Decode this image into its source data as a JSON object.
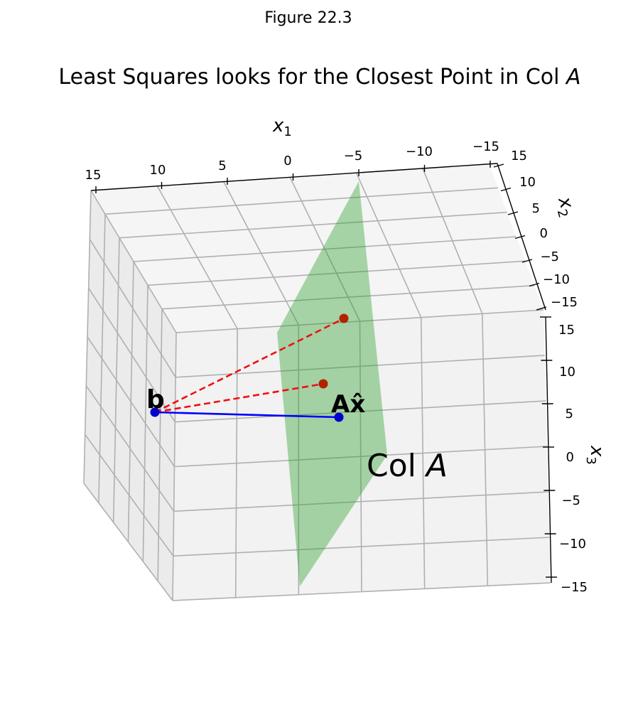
{
  "figure_label": "Figure 22.3",
  "chart_data": {
    "type": "scatter",
    "subtype": "3d",
    "title": "Least Squares looks for the Closest Point in Col A",
    "title_plain": "Least Squares looks for the Closest Point in Col ",
    "title_italic": "A",
    "axes": {
      "x1": {
        "label_base": "x",
        "label_sub": "1",
        "ticks": [
          "15",
          "10",
          "5",
          "0",
          "−5",
          "−10",
          "−15"
        ],
        "lim": [
          -15,
          15
        ]
      },
      "x2": {
        "label_base": "x",
        "label_sub": "2",
        "ticks": [
          "15",
          "10",
          "5",
          "0",
          "−5",
          "−10",
          "−15"
        ],
        "lim": [
          -15,
          15
        ]
      },
      "x3": {
        "label_base": "x",
        "label_sub": "3",
        "ticks": [
          "15",
          "10",
          "5",
          "0",
          "−5",
          "−10",
          "−15"
        ],
        "lim": [
          -15,
          15
        ]
      }
    },
    "grid": true,
    "plane": {
      "label_plain": "Col ",
      "label_italic": "A",
      "color": "#2ca02c",
      "alpha": 0.4
    },
    "points": [
      {
        "name": "b",
        "label": "b",
        "color": "#0000cc"
      },
      {
        "name": "Ax-hat",
        "label": "Ax̂",
        "color": "#0000cc"
      },
      {
        "name": "other-point-1",
        "label": "",
        "color": "#b22200"
      },
      {
        "name": "other-point-2",
        "label": "",
        "color": "#b22200"
      }
    ],
    "segments": [
      {
        "from": "b",
        "to": "Ax-hat",
        "style": "solid",
        "color": "#0000ff"
      },
      {
        "from": "b",
        "to": "other-point-1",
        "style": "dashed",
        "color": "#ee1111"
      },
      {
        "from": "b",
        "to": "other-point-2",
        "style": "dashed",
        "color": "#ee1111"
      }
    ]
  }
}
